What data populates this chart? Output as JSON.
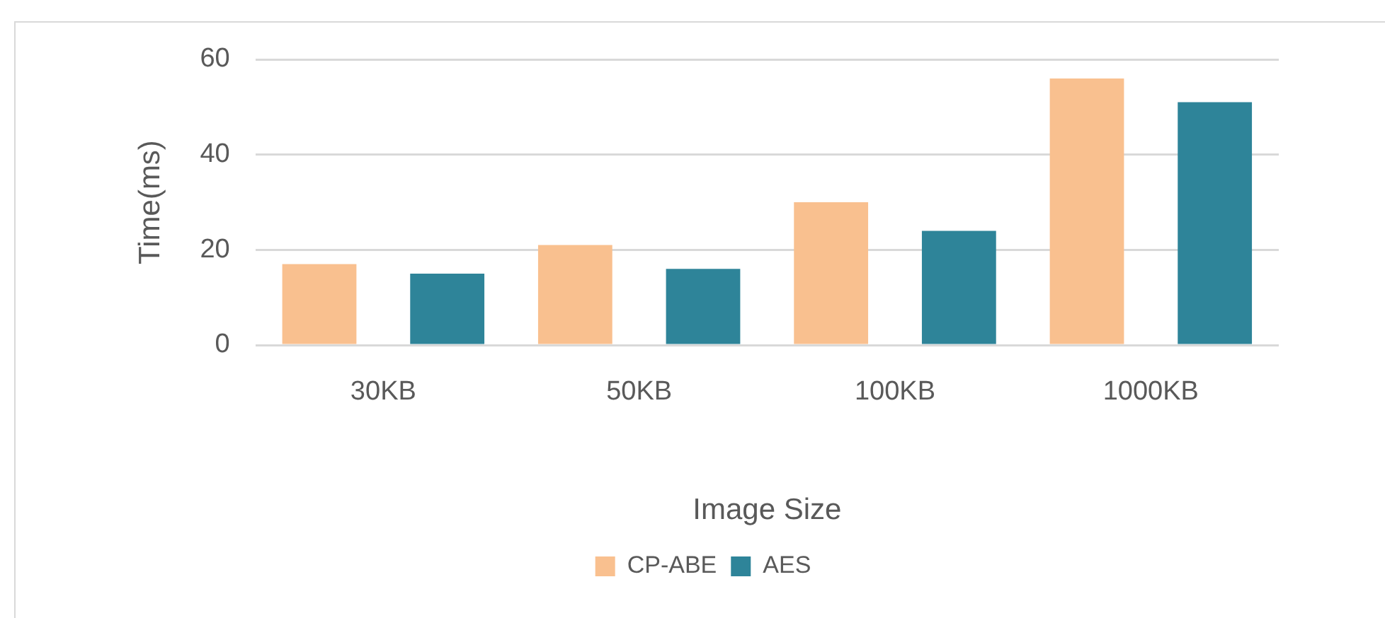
{
  "chart_data": {
    "type": "bar",
    "xlabel": "Image Size",
    "ylabel": "Time(ms)",
    "categories": [
      "30KB",
      "50KB",
      "100KB",
      "1000KB"
    ],
    "series": [
      {
        "name": "CP-ABE",
        "color": "#f9c08f",
        "values": [
          17,
          21,
          30,
          56
        ]
      },
      {
        "name": "AES",
        "color": "#2e8499",
        "values": [
          15,
          16,
          24,
          51
        ]
      }
    ],
    "ylim": [
      0,
      60
    ],
    "yticks": [
      0,
      20,
      40,
      60
    ],
    "grid": "y",
    "legend": "bottom"
  }
}
